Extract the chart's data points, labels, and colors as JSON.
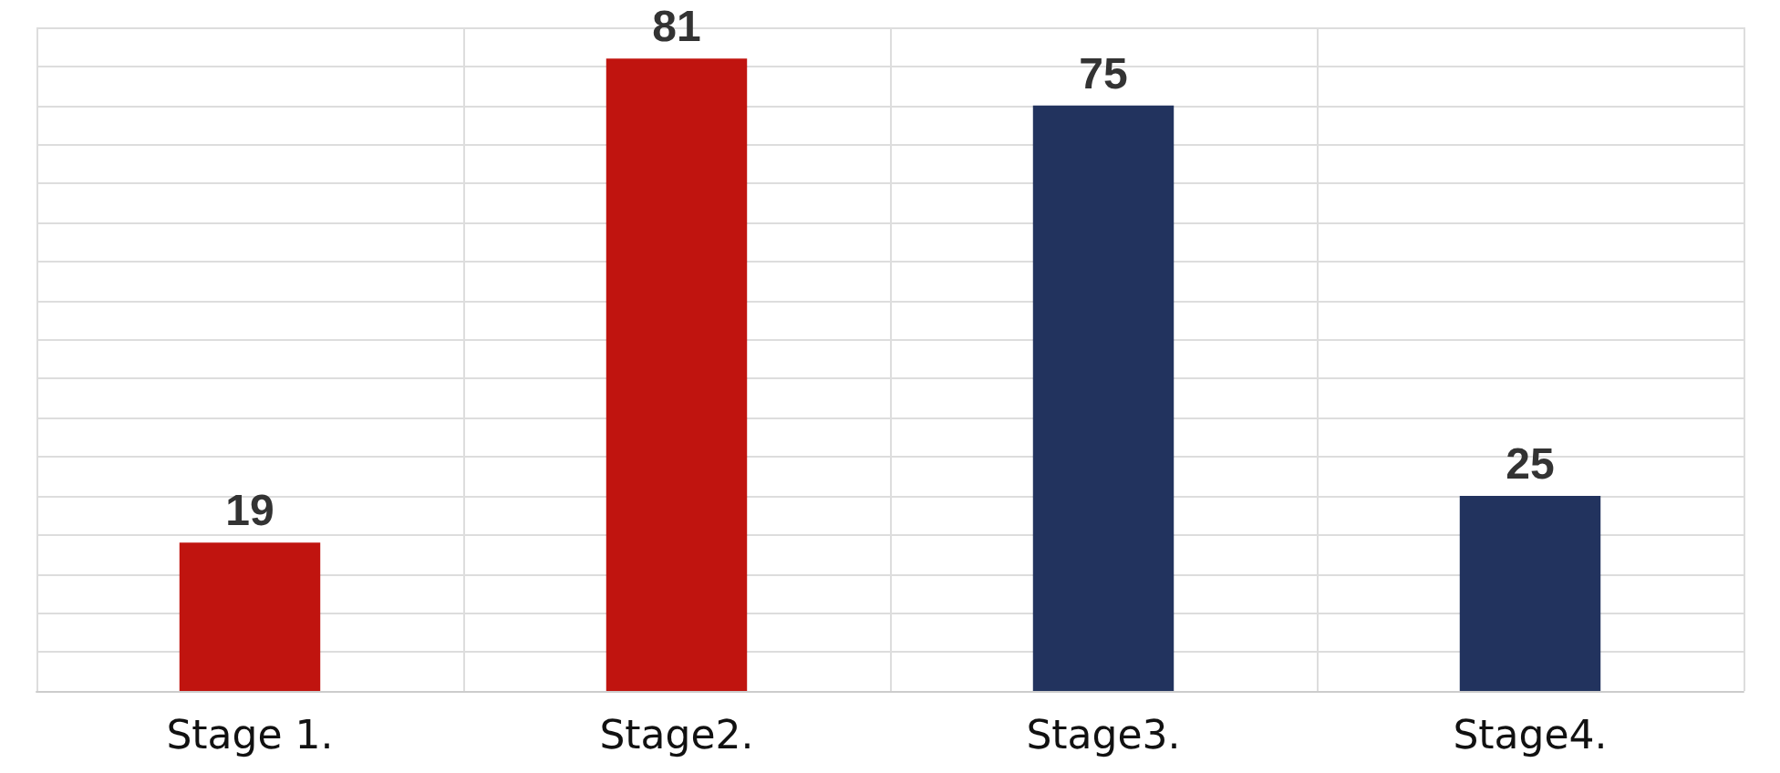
{
  "chart_data": {
    "type": "bar",
    "categories": [
      "Stage 1.",
      "Stage2.",
      "Stage3.",
      "Stage4."
    ],
    "values": [
      19,
      81,
      75,
      25
    ],
    "colors": [
      "#c0140f",
      "#c0140f",
      "#22335e",
      "#22335e"
    ],
    "data_labels": true,
    "grid": true,
    "tick_labels": "x"
  }
}
